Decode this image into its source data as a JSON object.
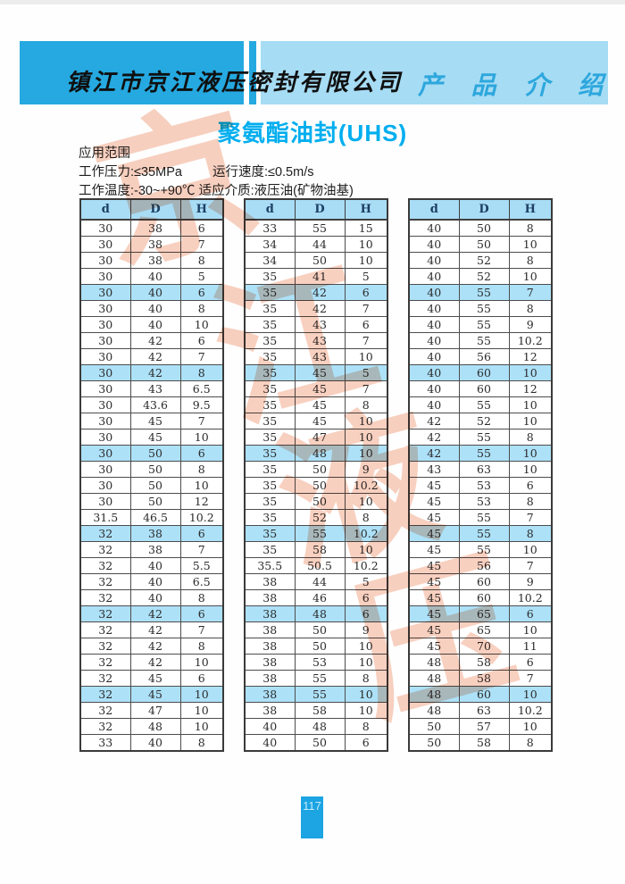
{
  "header": {
    "company": "镇江市京江液压密封有限公司",
    "section": "产 品 介 绍"
  },
  "title": "聚氨酯油封(UHS)",
  "specs": {
    "scope": "应用范围",
    "pressure": "工作压力:≤35MPa",
    "speed": "运行速度:≤0.5m/s",
    "temperature": "工作温度:-30~+90℃",
    "medium": "适应介质:液压油(矿物油基)"
  },
  "page_number": "117",
  "watermark": {
    "chars": [
      "京",
      "江",
      "液",
      "压"
    ],
    "color": "#f3a98c"
  },
  "colors": {
    "banner_dark": "#25a9e0",
    "banner_light": "#a6dcf4",
    "section_text": "#2da7dd",
    "title_text": "#00aeef",
    "table_header_bg": "#a9dcf5",
    "row_highlight_bg": "#ade1f8",
    "page_badge_bg": "#1ca4e3"
  },
  "chart_data": {
    "type": "table",
    "title": "聚氨酯油封(UHS)",
    "columns": [
      "d",
      "D",
      "H"
    ],
    "highlight_rule": "every 5th data row shaded light blue",
    "tables": [
      {
        "name": "table-1",
        "rows": [
          [
            30,
            38,
            6
          ],
          [
            30,
            38,
            7
          ],
          [
            30,
            38,
            8
          ],
          [
            30,
            40,
            5
          ],
          [
            30,
            40,
            6
          ],
          [
            30,
            40,
            8
          ],
          [
            30,
            40,
            10
          ],
          [
            30,
            42,
            6
          ],
          [
            30,
            42,
            7
          ],
          [
            30,
            42,
            8
          ],
          [
            30,
            43,
            6.5
          ],
          [
            30,
            43.6,
            9.5
          ],
          [
            30,
            45,
            7
          ],
          [
            30,
            45,
            10
          ],
          [
            30,
            50,
            6
          ],
          [
            30,
            50,
            8
          ],
          [
            30,
            50,
            10
          ],
          [
            30,
            50,
            12
          ],
          [
            31.5,
            46.5,
            10.2
          ],
          [
            32,
            38,
            6
          ],
          [
            32,
            38,
            7
          ],
          [
            32,
            40,
            5.5
          ],
          [
            32,
            40,
            6.5
          ],
          [
            32,
            40,
            8
          ],
          [
            32,
            42,
            6
          ],
          [
            32,
            42,
            7
          ],
          [
            32,
            42,
            8
          ],
          [
            32,
            42,
            10
          ],
          [
            32,
            45,
            6
          ],
          [
            32,
            45,
            10
          ],
          [
            32,
            47,
            10
          ],
          [
            32,
            48,
            10
          ],
          [
            33,
            40,
            8
          ]
        ]
      },
      {
        "name": "table-2",
        "rows": [
          [
            33,
            55,
            15
          ],
          [
            34,
            44,
            10
          ],
          [
            34,
            50,
            10
          ],
          [
            35,
            41,
            5
          ],
          [
            35,
            42,
            6
          ],
          [
            35,
            42,
            7
          ],
          [
            35,
            43,
            6
          ],
          [
            35,
            43,
            7
          ],
          [
            35,
            43,
            10
          ],
          [
            35,
            45,
            5
          ],
          [
            35,
            45,
            7
          ],
          [
            35,
            45,
            8
          ],
          [
            35,
            45,
            10
          ],
          [
            35,
            47,
            10
          ],
          [
            35,
            48,
            10
          ],
          [
            35,
            50,
            9
          ],
          [
            35,
            50,
            10.2
          ],
          [
            35,
            50,
            10
          ],
          [
            35,
            52,
            8
          ],
          [
            35,
            55,
            10.2
          ],
          [
            35,
            58,
            10
          ],
          [
            35.5,
            50.5,
            10.2
          ],
          [
            38,
            44,
            5
          ],
          [
            38,
            46,
            6
          ],
          [
            38,
            48,
            6
          ],
          [
            38,
            50,
            9
          ],
          [
            38,
            50,
            10
          ],
          [
            38,
            53,
            10
          ],
          [
            38,
            55,
            8
          ],
          [
            38,
            55,
            10
          ],
          [
            38,
            58,
            10
          ],
          [
            40,
            48,
            8
          ],
          [
            40,
            50,
            6
          ]
        ]
      },
      {
        "name": "table-3",
        "rows": [
          [
            40,
            50,
            8
          ],
          [
            40,
            50,
            10
          ],
          [
            40,
            52,
            8
          ],
          [
            40,
            52,
            10
          ],
          [
            40,
            55,
            7
          ],
          [
            40,
            55,
            8
          ],
          [
            40,
            55,
            9
          ],
          [
            40,
            55,
            10.2
          ],
          [
            40,
            56,
            12
          ],
          [
            40,
            60,
            10
          ],
          [
            40,
            60,
            12
          ],
          [
            40,
            55,
            10
          ],
          [
            42,
            52,
            10
          ],
          [
            42,
            55,
            8
          ],
          [
            42,
            55,
            10
          ],
          [
            43,
            63,
            10
          ],
          [
            45,
            53,
            6
          ],
          [
            45,
            53,
            8
          ],
          [
            45,
            55,
            7
          ],
          [
            45,
            55,
            8
          ],
          [
            45,
            55,
            10
          ],
          [
            45,
            56,
            7
          ],
          [
            45,
            60,
            9
          ],
          [
            45,
            60,
            10.2
          ],
          [
            45,
            65,
            6
          ],
          [
            45,
            65,
            10
          ],
          [
            45,
            70,
            11
          ],
          [
            48,
            58,
            6
          ],
          [
            48,
            58,
            7
          ],
          [
            48,
            60,
            10
          ],
          [
            48,
            63,
            10.2
          ],
          [
            50,
            57,
            10
          ],
          [
            50,
            58,
            8
          ]
        ]
      }
    ]
  }
}
